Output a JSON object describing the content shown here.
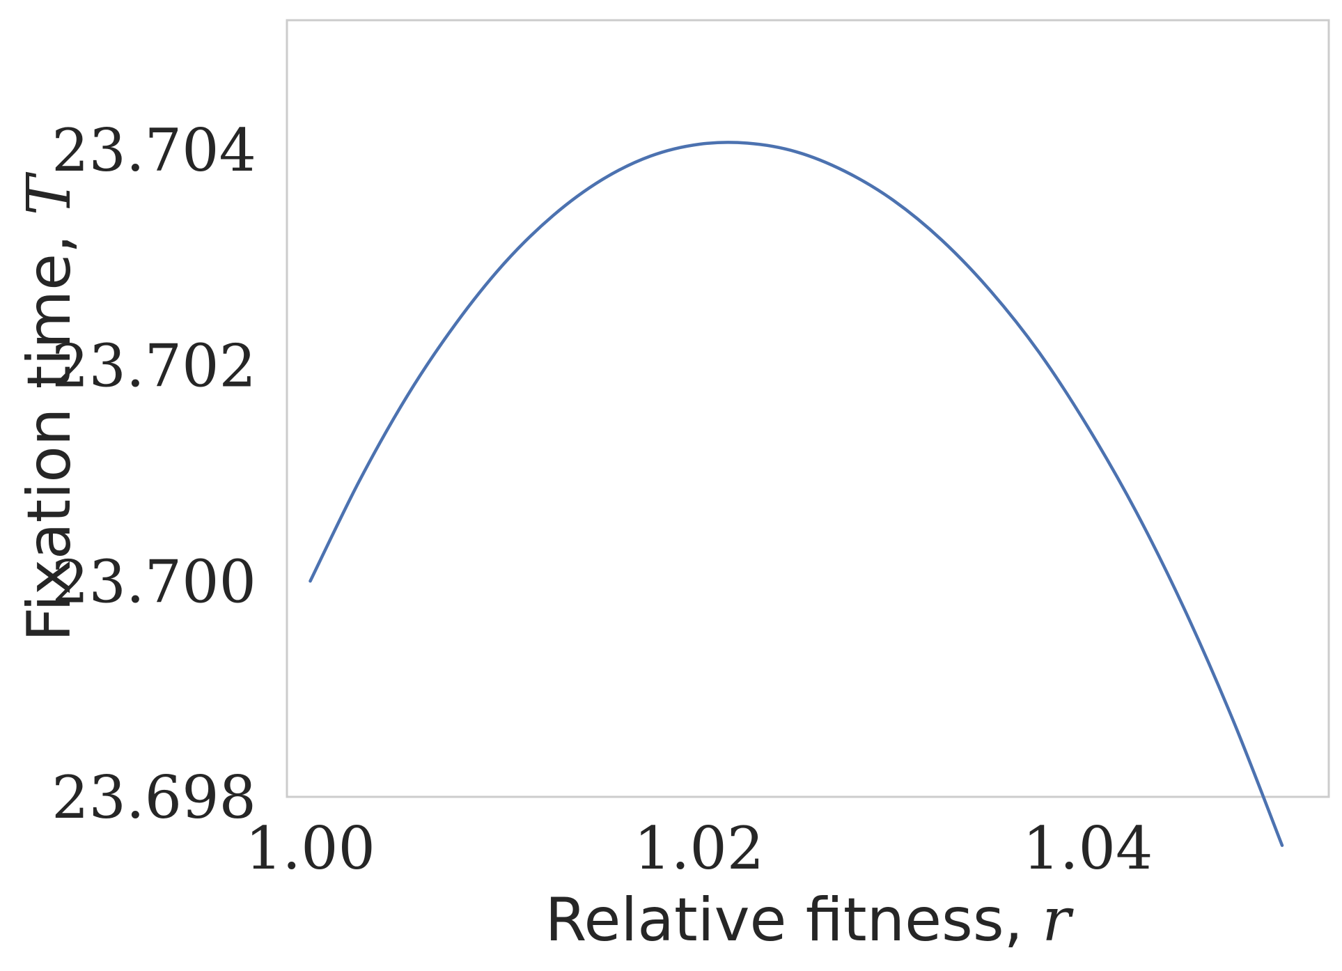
{
  "chart_data": {
    "type": "line",
    "title": "",
    "xlabel": "Relative fitness, ",
    "xlabel_var": "r",
    "ylabel": "Fixation time, ",
    "ylabel_var": "T",
    "xlim": [
      0.9988,
      1.0524
    ],
    "ylim": [
      23.698,
      23.7052
    ],
    "xticks": [
      1.0,
      1.02,
      1.04
    ],
    "xtick_labels": [
      "1.00",
      "1.02",
      "1.04"
    ],
    "yticks": [
      23.698,
      23.7,
      23.702,
      23.704
    ],
    "ytick_labels": [
      "23.698",
      "23.700",
      "23.702",
      "23.704"
    ],
    "grid": false,
    "series": [
      {
        "color": "#4c72b0",
        "x": [
          1.0,
          1.0025,
          1.005,
          1.0075,
          1.01,
          1.0125,
          1.015,
          1.0175,
          1.02,
          1.0225,
          1.025,
          1.0275,
          1.03,
          1.0325,
          1.035,
          1.0375,
          1.04,
          1.0425,
          1.045,
          1.0475,
          1.05
        ],
        "y": [
          23.7,
          23.70092,
          23.70172,
          23.70239,
          23.70295,
          23.70339,
          23.70372,
          23.70394,
          23.70405,
          23.70406,
          23.70398,
          23.7038,
          23.70353,
          23.70316,
          23.70269,
          23.70212,
          23.70143,
          23.70064,
          23.69973,
          23.6987,
          23.69755
        ]
      }
    ]
  }
}
